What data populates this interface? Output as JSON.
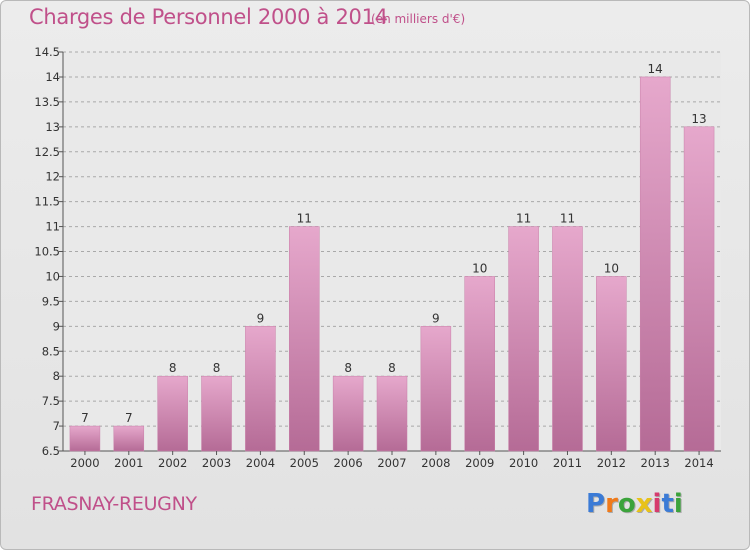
{
  "title": "Charges de Personnel 2000 à 2014",
  "subtitle": "(en milliers d'€)",
  "place": "FRASNAY-REUGNY",
  "brand": {
    "letters": [
      "P",
      "r",
      "o",
      "x",
      "i",
      "t",
      "i"
    ],
    "colors": [
      "#3b7bd6",
      "#f07a1a",
      "#3ba33b",
      "#e8c21a",
      "#d63b6e",
      "#3b7bd6",
      "#3ba33b"
    ]
  },
  "colors": {
    "bar_top": "#e6a8cc",
    "bar_bottom": "#b56b96",
    "text": "#c0508a",
    "grid": "#a9a9a9"
  },
  "chart_data": {
    "type": "bar",
    "categories": [
      "2000",
      "2001",
      "2002",
      "2003",
      "2004",
      "2005",
      "2006",
      "2007",
      "2008",
      "2009",
      "2010",
      "2011",
      "2012",
      "2013",
      "2014"
    ],
    "values": [
      7,
      7,
      8,
      8,
      9,
      11,
      8,
      8,
      9,
      10,
      11,
      11,
      10,
      14,
      13
    ],
    "ylim": [
      6.5,
      14.5
    ],
    "yticks": [
      "6.5",
      "7",
      "7.5",
      "8",
      "8.5",
      "9",
      "9.5",
      "10",
      "10.5",
      "11",
      "11.5",
      "12",
      "12.5",
      "13",
      "13.5",
      "14",
      "14.5"
    ],
    "xlabel": "",
    "ylabel": "",
    "grid": true
  }
}
